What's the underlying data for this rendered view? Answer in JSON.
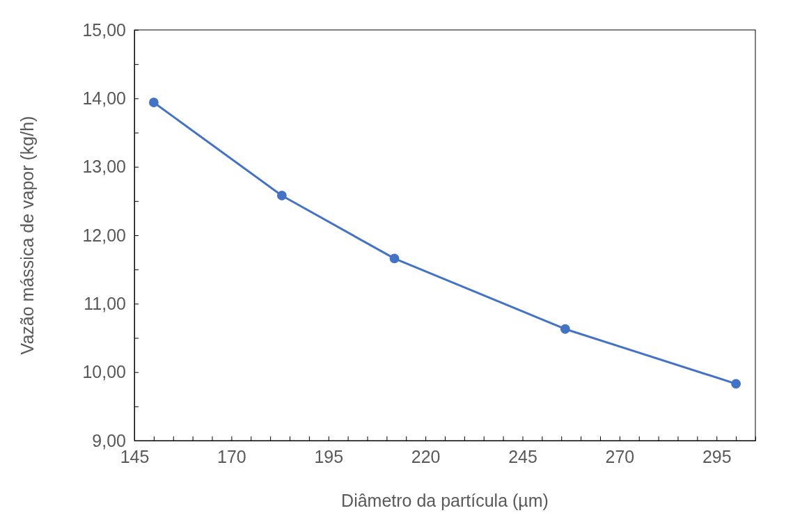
{
  "chart_data": {
    "type": "line",
    "xlabel": "Diâmetro da partícula (µm)",
    "ylabel": "Vazão mássica de vapor (kg/h)",
    "x": [
      150,
      183,
      212,
      256,
      300
    ],
    "series": [
      {
        "color": "#4472c4",
        "values": [
          13.94,
          12.58,
          11.66,
          10.63,
          9.83
        ]
      }
    ],
    "xlim": [
      145,
      305
    ],
    "xticks": [
      145,
      {
        "value": 150,
        "label": null
      },
      {
        "value": 155,
        "label": null
      },
      {
        "value": 160,
        "label": null
      },
      {
        "value": 165,
        "label": null
      },
      170,
      {
        "value": 175,
        "label": null
      },
      {
        "value": 180,
        "label": null
      },
      {
        "value": 185,
        "label": null
      },
      {
        "value": 190,
        "label": null
      },
      195,
      {
        "value": 200,
        "label": null
      },
      {
        "value": 205,
        "label": null
      },
      {
        "value": 210,
        "label": null
      },
      {
        "value": 215,
        "label": null
      },
      220,
      {
        "value": 225,
        "label": null
      },
      {
        "value": 230,
        "label": null
      },
      {
        "value": 235,
        "label": null
      },
      {
        "value": 240,
        "label": null
      },
      245,
      {
        "value": 250,
        "label": null
      },
      {
        "value": 255,
        "label": null
      },
      {
        "value": 260,
        "label": null
      },
      {
        "value": 265,
        "label": null
      },
      270,
      {
        "value": 275,
        "label": null
      },
      {
        "value": 280,
        "label": null
      },
      {
        "value": 285,
        "label": null
      },
      {
        "value": 290,
        "label": null
      },
      295,
      {
        "value": 300,
        "label": null
      },
      {
        "value": 305,
        "label": null
      }
    ],
    "ylim": [
      9,
      15
    ],
    "yticks": [
      {
        "value": 9,
        "label": "9,00"
      },
      {
        "value": 9.5,
        "label": null
      },
      {
        "value": 10,
        "label": "10,00"
      },
      {
        "value": 10.5,
        "label": null
      },
      {
        "value": 11,
        "label": "11,00"
      },
      {
        "value": 11.5,
        "label": null
      },
      {
        "value": 12,
        "label": "12,00"
      },
      {
        "value": 12.5,
        "label": null
      },
      {
        "value": 13,
        "label": "13,00"
      },
      {
        "value": 13.5,
        "label": null
      },
      {
        "value": 14,
        "label": "14,00"
      },
      {
        "value": 14.5,
        "label": null
      },
      {
        "value": 15,
        "label": "15,00"
      }
    ],
    "grid": false,
    "marker": "circle",
    "line_style": "solid"
  }
}
